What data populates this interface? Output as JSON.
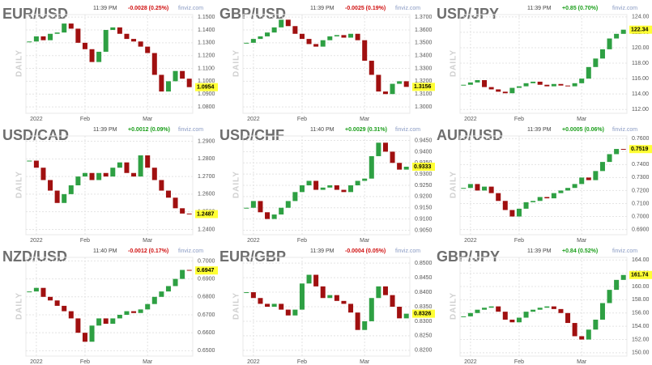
{
  "chart_data": [
    {
      "type": "candlestick",
      "title": "EUR/USD",
      "time": "11:39 PM",
      "change": "-0.0028 (0.25%)",
      "change_color": "#d01010",
      "source": "finviz.com",
      "timeframe": "DAILY",
      "up_color": "#2ea043",
      "down_color": "#a01010",
      "categories": [
        null,
        "2022",
        null,
        null,
        null,
        null,
        null,
        null,
        "Feb",
        null,
        null,
        null,
        null,
        null,
        null,
        null,
        null,
        "Mar",
        null,
        null,
        null,
        null,
        null,
        null
      ],
      "values": [
        1.131,
        1.135,
        1.132,
        1.137,
        1.138,
        1.145,
        1.141,
        1.13,
        1.125,
        1.115,
        1.123,
        1.14,
        1.142,
        1.137,
        1.133,
        1.131,
        1.127,
        1.122,
        1.105,
        1.092,
        1.1,
        1.108,
        1.102,
        1.0954
      ],
      "last_price": 1.0954,
      "ylim": [
        1.075,
        1.152
      ],
      "yticks": [
        {
          "value": 1.08,
          "label": "1.0800"
        },
        {
          "value": 1.09,
          "label": "1.0900"
        },
        {
          "value": 1.1,
          "label": "1.1000"
        },
        {
          "value": 1.11,
          "label": "1.1100"
        },
        {
          "value": 1.12,
          "label": "1.1200"
        },
        {
          "value": 1.13,
          "label": "1.1300"
        },
        {
          "value": 1.14,
          "label": "1.1400"
        },
        {
          "value": 1.15,
          "label": "1.1500"
        }
      ]
    },
    {
      "type": "candlestick",
      "title": "GBP/USD",
      "time": "11:39 PM",
      "change": "-0.0025 (0.19%)",
      "change_color": "#d01010",
      "source": "finviz.com",
      "timeframe": "DAILY",
      "up_color": "#2ea043",
      "down_color": "#a01010",
      "categories": [
        null,
        "2022",
        null,
        null,
        null,
        null,
        null,
        null,
        "Feb",
        null,
        null,
        null,
        null,
        null,
        null,
        null,
        null,
        "Mar",
        null,
        null,
        null,
        null,
        null,
        null
      ],
      "values": [
        1.35,
        1.353,
        1.355,
        1.358,
        1.362,
        1.368,
        1.363,
        1.357,
        1.353,
        1.349,
        1.347,
        1.352,
        1.355,
        1.356,
        1.354,
        1.357,
        1.352,
        1.336,
        1.325,
        1.312,
        1.31,
        1.318,
        1.32,
        1.3156
      ],
      "last_price": 1.3156,
      "ylim": [
        1.295,
        1.372
      ],
      "yticks": [
        {
          "value": 1.3,
          "label": "1.3000"
        },
        {
          "value": 1.31,
          "label": "1.3100"
        },
        {
          "value": 1.32,
          "label": "1.3200"
        },
        {
          "value": 1.33,
          "label": "1.3300"
        },
        {
          "value": 1.34,
          "label": "1.3400"
        },
        {
          "value": 1.35,
          "label": "1.3500"
        },
        {
          "value": 1.36,
          "label": "1.3600"
        },
        {
          "value": 1.37,
          "label": "1.3700"
        }
      ]
    },
    {
      "type": "candlestick",
      "title": "USD/JPY",
      "time": "11:39 PM",
      "change": "+0.85 (0.70%)",
      "change_color": "#1a9e1a",
      "source": "finviz.com",
      "timeframe": "DAILY",
      "up_color": "#2ea043",
      "down_color": "#a01010",
      "categories": [
        null,
        "2022",
        null,
        null,
        null,
        null,
        null,
        null,
        "Feb",
        null,
        null,
        null,
        null,
        null,
        null,
        null,
        null,
        "Mar",
        null,
        null,
        null,
        null,
        null,
        null
      ],
      "values": [
        115.2,
        115.5,
        115.8,
        114.9,
        114.6,
        114.3,
        114.1,
        114.8,
        115.0,
        115.4,
        115.6,
        115.2,
        115.0,
        115.3,
        115.1,
        115.0,
        115.4,
        116.0,
        117.5,
        118.6,
        119.8,
        121.2,
        121.8,
        122.34
      ],
      "last_price": 122.34,
      "ylim": [
        111.5,
        124.3
      ],
      "yticks": [
        {
          "value": 112,
          "label": "112.00"
        },
        {
          "value": 114,
          "label": "114.00"
        },
        {
          "value": 116,
          "label": "116.00"
        },
        {
          "value": 118,
          "label": "118.00"
        },
        {
          "value": 120,
          "label": "120.00"
        },
        {
          "value": 122,
          "label": "122.00"
        },
        {
          "value": 124,
          "label": "124.00"
        }
      ]
    },
    {
      "type": "candlestick",
      "title": "USD/CAD",
      "time": "11:39 PM",
      "change": "+0.0012 (0.09%)",
      "change_color": "#1a9e1a",
      "source": "finviz.com",
      "timeframe": "DAILY",
      "up_color": "#2ea043",
      "down_color": "#a01010",
      "categories": [
        null,
        "2022",
        null,
        null,
        null,
        null,
        null,
        null,
        "Feb",
        null,
        null,
        null,
        null,
        null,
        null,
        null,
        null,
        "Mar",
        null,
        null,
        null,
        null,
        null,
        null
      ],
      "values": [
        1.279,
        1.275,
        1.268,
        1.262,
        1.255,
        1.26,
        1.265,
        1.27,
        1.272,
        1.268,
        1.272,
        1.27,
        1.275,
        1.278,
        1.272,
        1.27,
        1.282,
        1.275,
        1.268,
        1.262,
        1.258,
        1.252,
        1.249,
        1.2487
      ],
      "last_price": 1.2487,
      "ylim": [
        1.237,
        1.293
      ],
      "yticks": [
        {
          "value": 1.24,
          "label": "1.2400"
        },
        {
          "value": 1.25,
          "label": "1.2500"
        },
        {
          "value": 1.26,
          "label": "1.2600"
        },
        {
          "value": 1.27,
          "label": "1.2700"
        },
        {
          "value": 1.28,
          "label": "1.2800"
        },
        {
          "value": 1.29,
          "label": "1.2900"
        }
      ]
    },
    {
      "type": "candlestick",
      "title": "USD/CHF",
      "time": "11:40 PM",
      "change": "+0.0029 (0.31%)",
      "change_color": "#1a9e1a",
      "source": "finviz.com",
      "timeframe": "DAILY",
      "up_color": "#2ea043",
      "down_color": "#a01010",
      "categories": [
        null,
        "2022",
        null,
        null,
        null,
        null,
        null,
        null,
        "Feb",
        null,
        null,
        null,
        null,
        null,
        null,
        null,
        null,
        "Mar",
        null,
        null,
        null,
        null,
        null,
        null
      ],
      "values": [
        0.915,
        0.918,
        0.913,
        0.91,
        0.912,
        0.915,
        0.918,
        0.922,
        0.925,
        0.927,
        0.923,
        0.924,
        0.925,
        0.923,
        0.922,
        0.925,
        0.927,
        0.928,
        0.938,
        0.944,
        0.94,
        0.935,
        0.932,
        0.9333
      ],
      "last_price": 0.9333,
      "ylim": [
        0.903,
        0.947
      ],
      "yticks": [
        {
          "value": 0.905,
          "label": "0.9050"
        },
        {
          "value": 0.91,
          "label": "0.9100"
        },
        {
          "value": 0.915,
          "label": "0.9150"
        },
        {
          "value": 0.92,
          "label": "0.9200"
        },
        {
          "value": 0.925,
          "label": "0.9250"
        },
        {
          "value": 0.93,
          "label": "0.9300"
        },
        {
          "value": 0.935,
          "label": "0.9350"
        },
        {
          "value": 0.94,
          "label": "0.9400"
        },
        {
          "value": 0.945,
          "label": "0.9450"
        }
      ]
    },
    {
      "type": "candlestick",
      "title": "AUD/USD",
      "time": "11:39 PM",
      "change": "+0.0005 (0.06%)",
      "change_color": "#1a9e1a",
      "source": "finviz.com",
      "timeframe": "DAILY",
      "up_color": "#2ea043",
      "down_color": "#a01010",
      "categories": [
        null,
        "2022",
        null,
        null,
        null,
        null,
        null,
        null,
        "Feb",
        null,
        null,
        null,
        null,
        null,
        null,
        null,
        null,
        "Mar",
        null,
        null,
        null,
        null,
        null,
        null
      ],
      "values": [
        0.722,
        0.725,
        0.72,
        0.723,
        0.718,
        0.712,
        0.705,
        0.7,
        0.706,
        0.711,
        0.712,
        0.715,
        0.714,
        0.718,
        0.72,
        0.722,
        0.725,
        0.73,
        0.728,
        0.735,
        0.742,
        0.748,
        0.752,
        0.7519
      ],
      "last_price": 0.7519,
      "ylim": [
        0.686,
        0.762
      ],
      "yticks": [
        {
          "value": 0.69,
          "label": "0.6900"
        },
        {
          "value": 0.7,
          "label": "0.7000"
        },
        {
          "value": 0.71,
          "label": "0.7100"
        },
        {
          "value": 0.72,
          "label": "0.7200"
        },
        {
          "value": 0.73,
          "label": "0.7300"
        },
        {
          "value": 0.74,
          "label": "0.7400"
        },
        {
          "value": 0.75,
          "label": "0.7500"
        },
        {
          "value": 0.76,
          "label": "0.7600"
        }
      ]
    },
    {
      "type": "candlestick",
      "title": "NZD/USD",
      "time": "11:40 PM",
      "change": "-0.0012 (0.17%)",
      "change_color": "#d01010",
      "source": "finviz.com",
      "timeframe": "DAILY",
      "up_color": "#2ea043",
      "down_color": "#a01010",
      "categories": [
        null,
        "2022",
        null,
        null,
        null,
        null,
        null,
        null,
        "Feb",
        null,
        null,
        null,
        null,
        null,
        null,
        null,
        null,
        "Mar",
        null,
        null,
        null,
        null,
        null,
        null
      ],
      "values": [
        0.683,
        0.685,
        0.68,
        0.678,
        0.675,
        0.672,
        0.668,
        0.66,
        0.655,
        0.664,
        0.668,
        0.665,
        0.668,
        0.67,
        0.672,
        0.671,
        0.673,
        0.676,
        0.68,
        0.683,
        0.686,
        0.69,
        0.695,
        0.6947
      ],
      "last_price": 0.6947,
      "ylim": [
        0.647,
        0.702
      ],
      "yticks": [
        {
          "value": 0.65,
          "label": "0.6500"
        },
        {
          "value": 0.66,
          "label": "0.6600"
        },
        {
          "value": 0.67,
          "label": "0.6700"
        },
        {
          "value": 0.68,
          "label": "0.6800"
        },
        {
          "value": 0.69,
          "label": "0.6900"
        },
        {
          "value": 0.7,
          "label": "0.7000"
        }
      ]
    },
    {
      "type": "candlestick",
      "title": "EUR/GBP",
      "time": "11:39 PM",
      "change": "-0.0004 (0.05%)",
      "change_color": "#d01010",
      "source": "finviz.com",
      "timeframe": "DAILY",
      "up_color": "#2ea043",
      "down_color": "#a01010",
      "categories": [
        null,
        "2022",
        null,
        null,
        null,
        null,
        null,
        null,
        "Feb",
        null,
        null,
        null,
        null,
        null,
        null,
        null,
        null,
        "Mar",
        null,
        null,
        null,
        null,
        null,
        null
      ],
      "values": [
        0.84,
        0.838,
        0.836,
        0.835,
        0.836,
        0.834,
        0.832,
        0.834,
        0.843,
        0.846,
        0.842,
        0.838,
        0.839,
        0.837,
        0.836,
        0.833,
        0.827,
        0.83,
        0.838,
        0.842,
        0.839,
        0.835,
        0.831,
        0.8326
      ],
      "last_price": 0.8326,
      "ylim": [
        0.818,
        0.852
      ],
      "yticks": [
        {
          "value": 0.82,
          "label": "0.8200"
        },
        {
          "value": 0.825,
          "label": "0.8250"
        },
        {
          "value": 0.83,
          "label": "0.8300"
        },
        {
          "value": 0.835,
          "label": "0.8350"
        },
        {
          "value": 0.84,
          "label": "0.8400"
        },
        {
          "value": 0.845,
          "label": "0.8450"
        },
        {
          "value": 0.85,
          "label": "0.8500"
        }
      ]
    },
    {
      "type": "candlestick",
      "title": "GBP/JPY",
      "time": "11:39 PM",
      "change": "+0.84 (0.52%)",
      "change_color": "#1a9e1a",
      "source": "finviz.com",
      "timeframe": "DAILY",
      "up_color": "#2ea043",
      "down_color": "#a01010",
      "categories": [
        null,
        "2022",
        null,
        null,
        null,
        null,
        null,
        null,
        "Feb",
        null,
        null,
        null,
        null,
        null,
        null,
        null,
        null,
        "Mar",
        null,
        null,
        null,
        null,
        null,
        null
      ],
      "values": [
        155.5,
        156.0,
        156.5,
        156.8,
        157.0,
        156.2,
        155.0,
        154.6,
        155.3,
        156.2,
        156.5,
        156.8,
        157.0,
        156.6,
        156.0,
        154.5,
        152.5,
        152.0,
        153.5,
        155.0,
        157.5,
        159.5,
        161.0,
        161.74
      ],
      "last_price": 161.74,
      "ylim": [
        149.5,
        164.4
      ],
      "yticks": [
        {
          "value": 150,
          "label": "150.00"
        },
        {
          "value": 152,
          "label": "152.00"
        },
        {
          "value": 154,
          "label": "154.00"
        },
        {
          "value": 156,
          "label": "156.00"
        },
        {
          "value": 158,
          "label": "158.00"
        },
        {
          "value": 160,
          "label": "160.00"
        },
        {
          "value": 162,
          "label": "162.00"
        },
        {
          "value": 164,
          "label": "164.00"
        }
      ]
    }
  ]
}
